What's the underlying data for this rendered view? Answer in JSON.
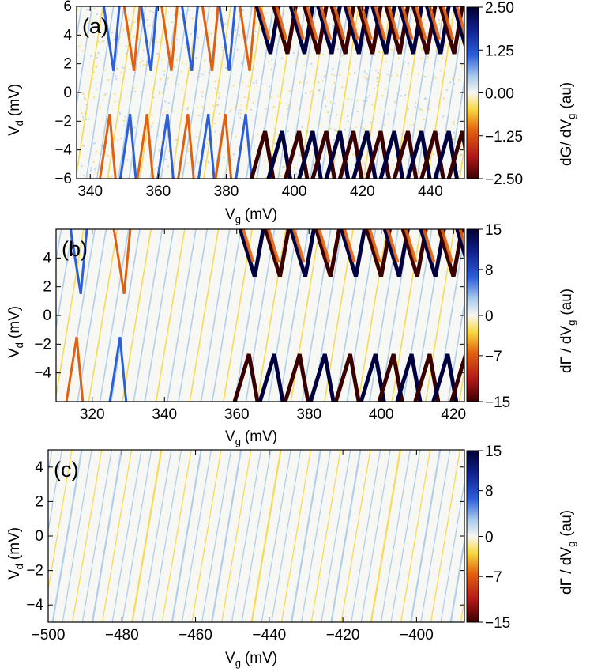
{
  "chart_data": [
    {
      "type": "heatmap",
      "panel_label": "(a)",
      "xlabel": "V",
      "xlabel_sub": "g",
      "xlabel_unit": "(mV)",
      "ylabel": "V",
      "ylabel_sub": "d",
      "ylabel_unit": "(mV)",
      "xlim": [
        336,
        450
      ],
      "ylim": [
        -6,
        6
      ],
      "xticks": [
        340,
        360,
        380,
        400,
        420,
        440
      ],
      "yticks": [
        -6,
        -4,
        -2,
        0,
        2,
        4,
        6
      ],
      "colorbar": {
        "label": "dG/ dV",
        "label_sub": "g",
        "label_unit": "(au)",
        "range": [
          -2.5,
          2.5
        ],
        "ticks": [
          2.5,
          1.25,
          0,
          -1.25,
          -2.5
        ],
        "tick_labels": [
          "2.50",
          "1.25",
          "0.00",
          "−1.25",
          "−2.50"
        ]
      },
      "diamond_edges_x": [
        344,
        350,
        355,
        361,
        367,
        373,
        378,
        384,
        389,
        394,
        399,
        403,
        407,
        411,
        415,
        419,
        423,
        427,
        431,
        435,
        439,
        443,
        447
      ],
      "strong_from_x": 388
    },
    {
      "type": "heatmap",
      "panel_label": "(b)",
      "xlabel": "V",
      "xlabel_sub": "g",
      "xlabel_unit": "(mV)",
      "ylabel": "V",
      "ylabel_sub": "d",
      "ylabel_unit": "(mV)",
      "xlim": [
        310,
        423
      ],
      "ylim": [
        -6,
        6
      ],
      "xticks": [
        320,
        340,
        360,
        380,
        400,
        420
      ],
      "yticks": [
        -4,
        -2,
        0,
        2,
        4
      ],
      "colorbar": {
        "label": "dΓ / dV",
        "label_sub": "g",
        "label_unit": "(au)",
        "range": [
          -15,
          15
        ],
        "ticks": [
          15,
          8,
          0,
          -7,
          -15
        ],
        "tick_labels": [
          "15",
          "8",
          "0",
          "−7",
          "−15"
        ]
      },
      "diamond_edges_x": [
        314,
        326,
        361,
        368,
        375,
        382,
        389,
        396,
        401,
        406,
        411,
        416,
        421
      ],
      "strong_from_x": 360
    },
    {
      "type": "heatmap",
      "panel_label": "(c)",
      "xlabel": "V",
      "xlabel_sub": "g",
      "xlabel_unit": "(mV)",
      "ylabel": "V",
      "ylabel_sub": "d",
      "ylabel_unit": "(mV)",
      "xlim": [
        -500,
        -387
      ],
      "ylim": [
        -5,
        5
      ],
      "xticks": [
        -500,
        -480,
        -460,
        -440,
        -420,
        -400
      ],
      "yticks": [
        -4,
        -2,
        0,
        2,
        4
      ],
      "xtick_labels": [
        "−500",
        "−480",
        "−460",
        "−440",
        "−420",
        "−400"
      ],
      "colorbar": {
        "label": "dΓ / dV",
        "label_sub": "g",
        "label_unit": "(au)",
        "range": [
          -15,
          15
        ],
        "ticks": [
          15,
          8,
          0,
          -7,
          -15
        ],
        "tick_labels": [
          "15",
          "8",
          "0",
          "−7",
          "−15"
        ]
      },
      "diamond_edges_x": [],
      "strong_from_x": null
    }
  ],
  "colors": {
    "positive_max": "#000040",
    "positive_mid": "#2c5fd8",
    "positive_low": "#a6c8ec",
    "zero": "#f7f7f3",
    "negative_low": "#f7d640",
    "negative_mid": "#e06010",
    "negative_max": "#3a0000"
  }
}
